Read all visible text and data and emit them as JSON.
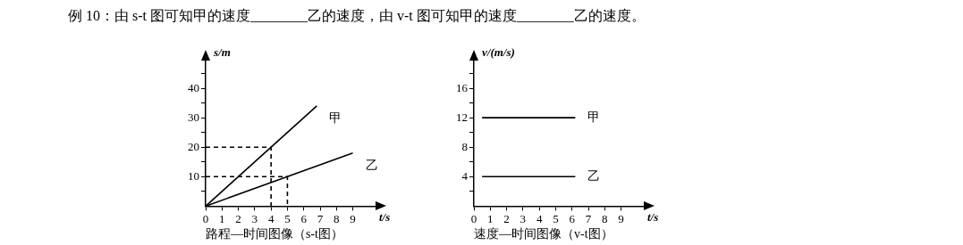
{
  "chart_data": [
    {
      "type": "line",
      "title": "例 10：由 s-t 图可知甲的速度________乙的速度，由 v-t 图可知甲的速度________乙的速度。",
      "xlabel": "t/s",
      "ylabel": "s/m",
      "annotations": [
        "路程—时间图像（s-t图）"
      ],
      "xlim": [
        0,
        10.5
      ],
      "ylim": [
        0,
        50
      ],
      "xticks": [
        0,
        1,
        2,
        3,
        4,
        5,
        6,
        7,
        8,
        9
      ],
      "yticks": [
        {
          "value": 5,
          "label": null
        },
        10,
        {
          "value": 15,
          "label": null
        },
        20,
        {
          "value": 25,
          "label": null
        },
        30,
        {
          "value": 35,
          "label": null
        },
        40,
        {
          "value": 45,
          "label": null
        }
      ],
      "grid": false,
      "legend": false,
      "marker": "none",
      "series": [
        {
          "name": "甲",
          "color": "#000000",
          "x": [
            0,
            6.8
          ],
          "values": [
            0,
            34
          ]
        },
        {
          "name": "乙",
          "color": "#000000",
          "x": [
            0,
            9
          ],
          "values": [
            0,
            18
          ]
        },
        {
          "color": "#000000",
          "x": [
            0,
            4,
            4
          ],
          "values": [
            20,
            20,
            0
          ],
          "line_style": "dashed"
        },
        {
          "color": "#000000",
          "x": [
            0,
            5,
            5
          ],
          "values": [
            10,
            10,
            0
          ],
          "line_style": "dashed"
        }
      ]
    },
    {
      "type": "line",
      "xlabel": "t/s",
      "ylabel": "v/(m/s)",
      "annotations": [
        "速度—时间图像（v-t图）"
      ],
      "xlim": [
        0,
        10.5
      ],
      "ylim": [
        0,
        20
      ],
      "xticks": [
        0,
        1,
        2,
        3,
        4,
        5,
        6,
        7,
        8,
        9
      ],
      "yticks": [
        {
          "value": 2,
          "label": null
        },
        4,
        {
          "value": 6,
          "label": null
        },
        8,
        {
          "value": 10,
          "label": null
        },
        12,
        {
          "value": 14,
          "label": null
        },
        16,
        {
          "value": 18,
          "label": null
        }
      ],
      "grid": false,
      "legend": false,
      "marker": "none",
      "series": [
        {
          "name": "甲",
          "color": "#000000",
          "x": [
            0.5,
            6.2
          ],
          "values": [
            12,
            12
          ]
        },
        {
          "name": "乙",
          "color": "#000000",
          "x": [
            0.5,
            6.2
          ],
          "values": [
            4,
            4
          ]
        }
      ]
    }
  ]
}
